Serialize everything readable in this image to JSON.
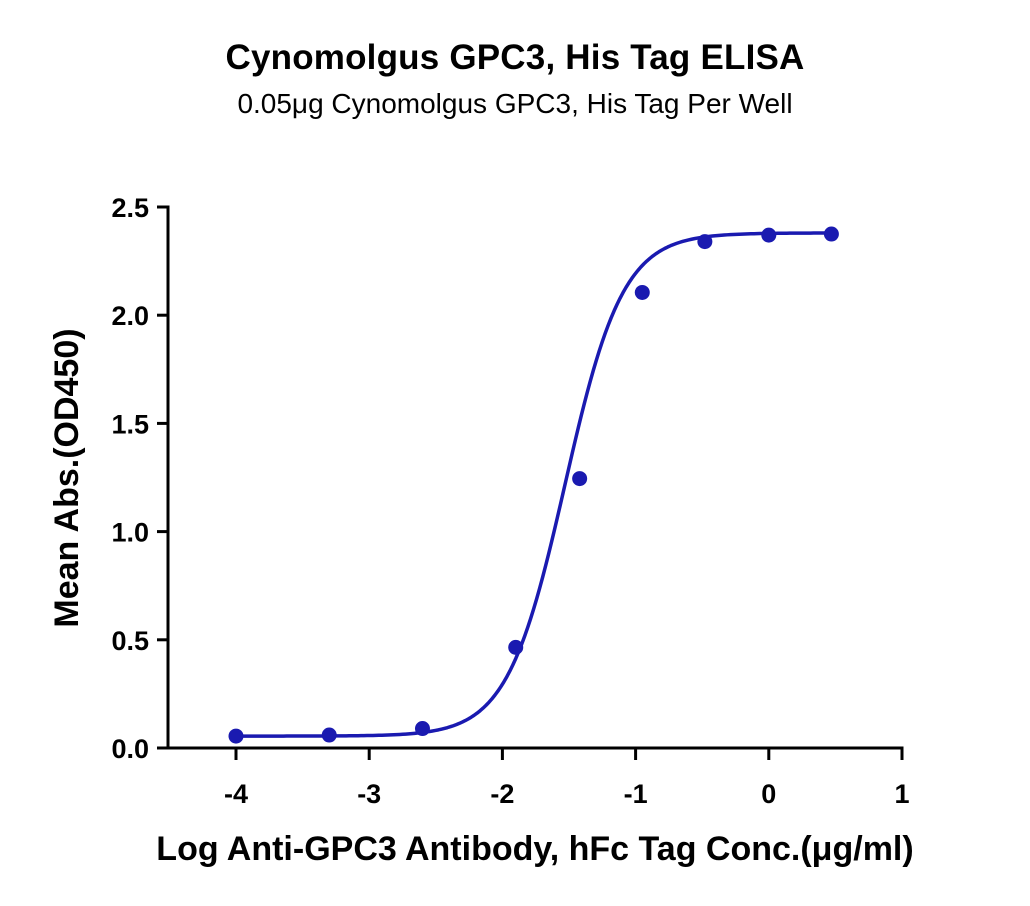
{
  "chart_data": {
    "type": "scatter",
    "title": "Cynomolgus GPC3, His Tag ELISA",
    "subtitle": "0.05μg Cynomolgus GPC3, His Tag Per Well",
    "xlabel": "Log Anti-GPC3 Antibody, hFc Tag Conc.(μg/ml)",
    "ylabel": "Mean Abs.(OD450)",
    "xlim": [
      -4.5,
      1
    ],
    "ylim": [
      0,
      2.5
    ],
    "x_ticks": [
      -4,
      -3,
      -2,
      -1,
      0,
      1
    ],
    "x_tick_labels": [
      "-4",
      "-3",
      "-2",
      "-1",
      "0",
      "1"
    ],
    "y_ticks": [
      0,
      0.5,
      1,
      1.5,
      2,
      2.5
    ],
    "y_tick_labels": [
      "0.0",
      "0.5",
      "1.0",
      "1.5",
      "2.0",
      "2.5"
    ],
    "grid": false,
    "legend": "none",
    "series": [
      {
        "x": [
          -4.0,
          -3.3,
          -2.6,
          -1.9,
          -1.42,
          -0.95,
          -0.48,
          0.0,
          0.47
        ],
        "y": [
          0.055,
          0.06,
          0.09,
          0.465,
          1.245,
          2.105,
          2.34,
          2.37,
          2.375
        ],
        "color": "#1a1ab0",
        "marker": "circle",
        "fit": "sigmoidal 4PL curve"
      }
    ]
  }
}
